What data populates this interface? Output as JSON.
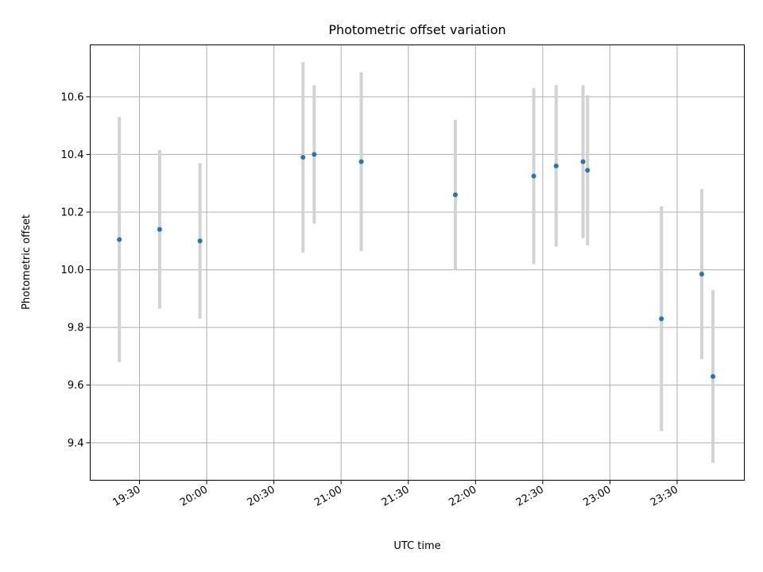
{
  "chart_data": {
    "type": "scatter",
    "title": "Photometric offset variation",
    "xlabel": "UTC time",
    "ylabel": "Photometric offset",
    "x_ticks": [
      "19:30",
      "20:00",
      "20:30",
      "21:00",
      "21:30",
      "22:00",
      "22:30",
      "23:00",
      "23:30"
    ],
    "y_ticks": [
      "9.4",
      "9.6",
      "9.8",
      "10.0",
      "10.2",
      "10.4",
      "10.6"
    ],
    "xlim": [
      "19:08",
      "24:00"
    ],
    "ylim": [
      9.27,
      10.78
    ],
    "grid": true,
    "marker_color": "#1f77b4",
    "errorbar_color": "#d3d3d3",
    "points": [
      {
        "x": "19:21",
        "y": 10.105,
        "err": 0.425
      },
      {
        "x": "19:39",
        "y": 10.14,
        "err": 0.275
      },
      {
        "x": "19:57",
        "y": 10.1,
        "err": 0.27
      },
      {
        "x": "20:43",
        "y": 10.39,
        "err": 0.33
      },
      {
        "x": "20:48",
        "y": 10.4,
        "err": 0.24
      },
      {
        "x": "21:09",
        "y": 10.375,
        "err": 0.31
      },
      {
        "x": "21:51",
        "y": 10.26,
        "err": 0.26
      },
      {
        "x": "22:26",
        "y": 10.325,
        "err": 0.305
      },
      {
        "x": "22:36",
        "y": 10.36,
        "err": 0.28
      },
      {
        "x": "22:48",
        "y": 10.375,
        "err": 0.265
      },
      {
        "x": "22:50",
        "y": 10.345,
        "err": 0.26
      },
      {
        "x": "23:23",
        "y": 9.83,
        "err": 0.39
      },
      {
        "x": "23:41",
        "y": 9.985,
        "err": 0.295
      },
      {
        "x": "23:46",
        "y": 9.63,
        "err": 0.3
      }
    ]
  }
}
